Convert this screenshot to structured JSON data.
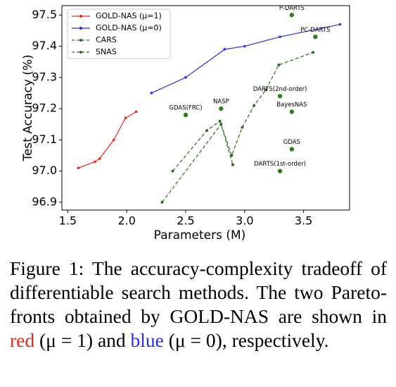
{
  "chart_data": {
    "type": "line",
    "x_label": "Parameters (M)",
    "y_label": "Test Accuracy (%)",
    "xlim": [
      1.45,
      3.89
    ],
    "ylim": [
      96.875,
      97.53
    ],
    "xticks": [
      1.5,
      {
        "value": 2.0,
        "label": "2.0"
      },
      2.5,
      {
        "value": 3.0,
        "label": "3.0"
      },
      3.5
    ],
    "yticks": [
      96.9,
      {
        "value": 97.0,
        "label": "97.0"
      },
      97.1,
      97.2,
      97.3,
      97.4,
      97.5
    ],
    "legend": "upper left",
    "series": [
      {
        "name": "GOLD-NAS (μ=1)",
        "color": "#e8251c",
        "dash": "solid",
        "x": [
          1.59,
          1.73,
          1.77,
          1.89,
          1.99,
          2.08
        ],
        "values": [
          97.01,
          97.03,
          97.04,
          97.1,
          97.17,
          97.19
        ]
      },
      {
        "name": "GOLD-NAS (μ=0)",
        "color": "#2a2ef0",
        "dash": "solid",
        "x": [
          2.21,
          2.5,
          2.83,
          3.0,
          3.3,
          3.81
        ],
        "values": [
          97.25,
          97.3,
          97.39,
          97.4,
          97.43,
          97.47
        ]
      },
      {
        "name": "CARS",
        "color": "#2e6b1f",
        "dash": "dashed",
        "x": [
          2.39,
          2.68,
          2.79,
          2.89,
          2.98,
          3.08,
          3.18,
          3.29,
          3.58
        ],
        "values": [
          97.0,
          97.13,
          97.16,
          97.05,
          97.14,
          97.21,
          97.26,
          97.34,
          97.38
        ]
      },
      {
        "name": "SNAS",
        "color": "#2e6b1f",
        "dash": "dashed",
        "x": [
          2.3,
          2.8,
          2.9
        ],
        "values": [
          96.9,
          97.15,
          97.02
        ]
      }
    ],
    "points_color": "#2e7d1f",
    "points": [
      {
        "label": "P-DARTS",
        "x": 3.4,
        "y": 97.5
      },
      {
        "label": "PC-DARTS",
        "x": 3.6,
        "y": 97.43
      },
      {
        "label": "DARTS(2nd-order)",
        "x": 3.3,
        "y": 97.24
      },
      {
        "label": "BayesNAS",
        "x": 3.4,
        "y": 97.19
      },
      {
        "label": "GDAS",
        "x": 3.4,
        "y": 97.07
      },
      {
        "label": "DARTS(1st-order)",
        "x": 3.3,
        "y": 97.0
      },
      {
        "label": "NASP",
        "x": 2.8,
        "y": 97.2
      },
      {
        "label": "GDAS(FRC)",
        "x": 2.5,
        "y": 97.18
      }
    ]
  },
  "caption": [
    {
      "text": "Figure 1: The accuracy-complexity tradeoff of differentiable search methods. The two Pareto-fronts obtained by GOLD-NAS are shown in "
    },
    {
      "text": "red",
      "color": "#e8251c"
    },
    {
      "text": " (μ = 1) and "
    },
    {
      "text": "blue",
      "color": "#2a2ef0"
    },
    {
      "text": " (μ = 0), respectively."
    }
  ]
}
